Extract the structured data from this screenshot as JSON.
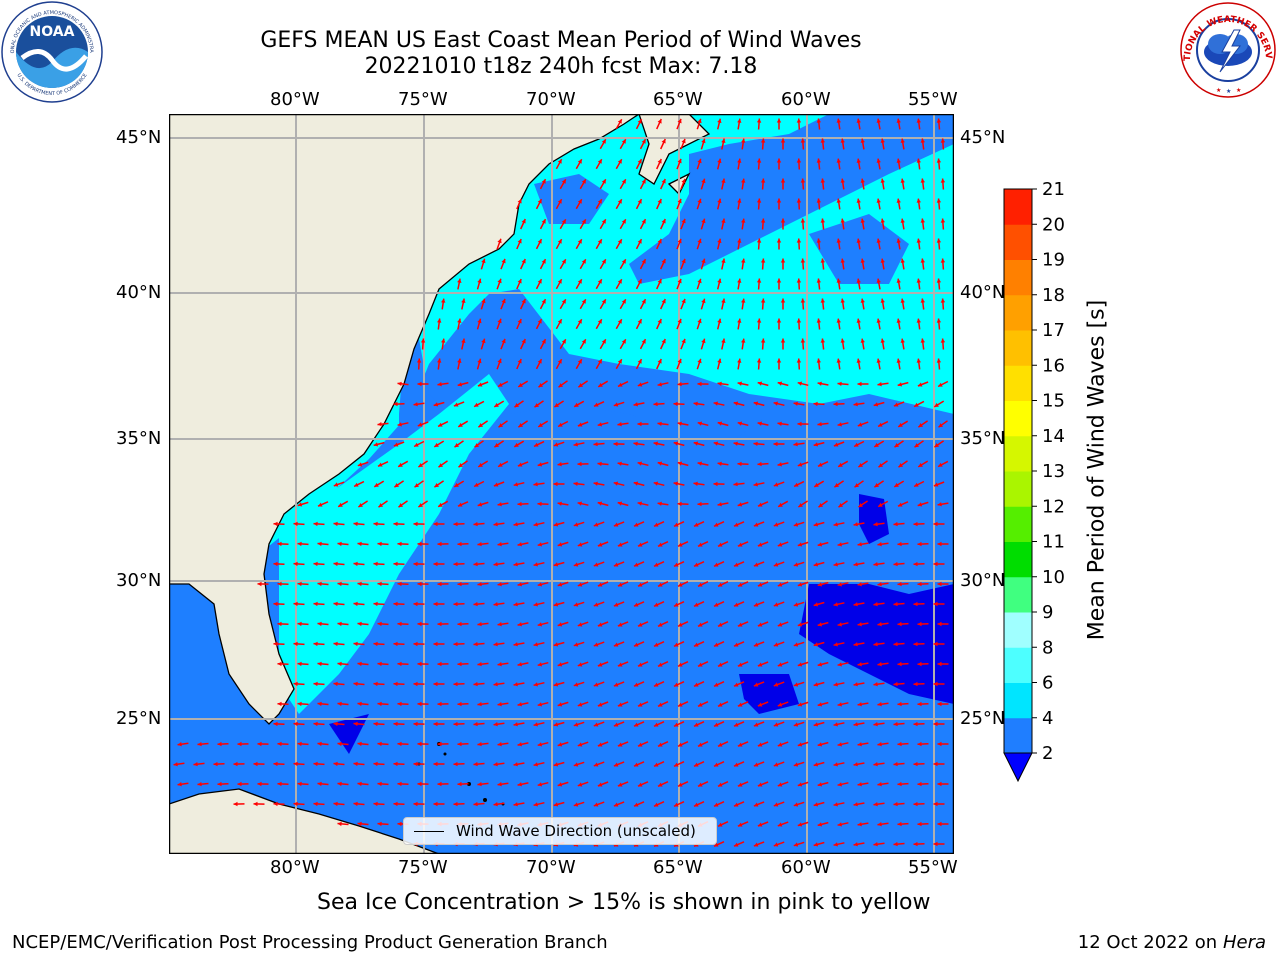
{
  "title": {
    "line1": "GEFS MEAN US East Coast Mean Period of Wind Waves",
    "line2": "20221010 t18z 240h fcst   Max: 7.18"
  },
  "logos": {
    "left": "NOAA",
    "left_ring_top": "NATIONAL OCEANIC AND ATMOSPHERIC ADMINISTRATION",
    "left_ring_bottom": "U.S. DEPARTMENT OF COMMERCE",
    "right_ring": "NATIONAL WEATHER SERVICE"
  },
  "map": {
    "lon_labels": [
      "80°W",
      "75°W",
      "70°W",
      "65°W",
      "60°W",
      "55°W"
    ],
    "lat_labels": [
      "45°N",
      "40°N",
      "35°N",
      "30°N",
      "25°N"
    ],
    "legend_text": "Wind Wave Direction (unscaled)",
    "colors": {
      "land": "#efedde",
      "sea_cyan": "#00ffff",
      "sea_blue": "#1e7fff",
      "sea_deep": "#0000e8",
      "arrow": "#ff0000",
      "grid": "#b0b0b0"
    }
  },
  "colorbar": {
    "label": "Mean Period of Wind Waves [s]",
    "ticks": [
      "2",
      "4",
      "6",
      "8",
      "9",
      "10",
      "11",
      "12",
      "13",
      "14",
      "15",
      "16",
      "17",
      "18",
      "19",
      "20",
      "21"
    ],
    "colors": [
      "#1f7eff",
      "#00e5ff",
      "#4dffff",
      "#a0ffff",
      "#40ff80",
      "#00dd00",
      "#55ee00",
      "#aaf500",
      "#d5f700",
      "#ffff00",
      "#ffe000",
      "#ffc000",
      "#ffa000",
      "#ff8000",
      "#ff5000",
      "#ff2000"
    ],
    "under_color": "#0000ff"
  },
  "caption": "Sea Ice Concentration > 15% is shown in pink to yellow",
  "footer": {
    "left": "NCEP/EMC/Verification Post Processing Product Generation Branch",
    "right_prefix": "12 Oct 2022 on ",
    "right_host": "Hera"
  }
}
